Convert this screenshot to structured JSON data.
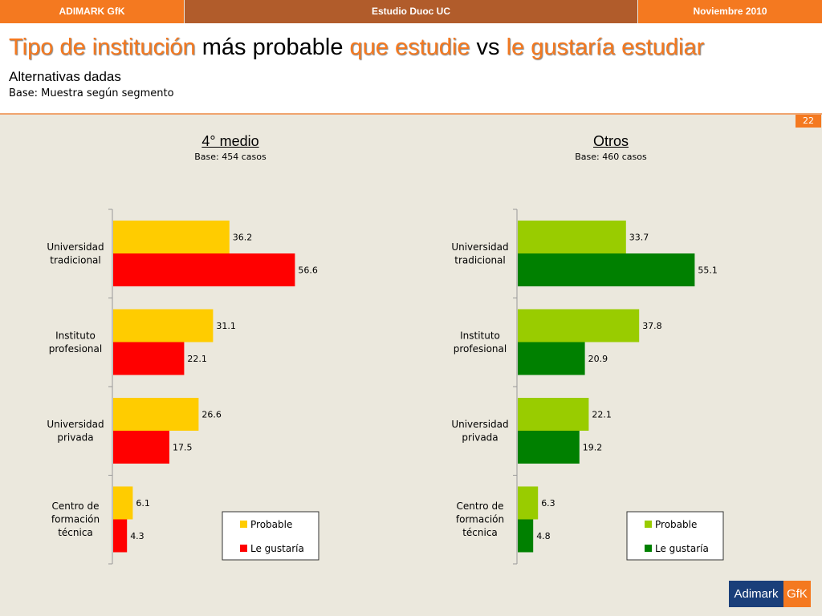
{
  "topbar": {
    "left": "ADIMARK GfK",
    "center": "Estudio Duoc UC",
    "right": "Noviembre 2010"
  },
  "header": {
    "title_parts": [
      "Tipo de institución",
      " más probable ",
      "que estudie",
      " vs ",
      "le gustaría estudiar"
    ],
    "subtitle": "Alternativas dadas",
    "base": "Base: Muestra según segmento"
  },
  "page_number": "22",
  "logo": {
    "left": "Adimark",
    "right": "GfK"
  },
  "colors": {
    "accent": "#f47920",
    "accent_dark": "#b15c2b",
    "probable_left": "#ffcc00",
    "gustaria_left": "#ff0000",
    "probable_right": "#99cc00",
    "gustaria_right": "#008000"
  },
  "chart_data": [
    {
      "type": "bar",
      "orientation": "horizontal",
      "title": "4° medio",
      "subtitle": "Base: 454 casos",
      "categories": [
        "Universidad tradicional",
        "Instituto profesional",
        "Universidad privada",
        "Centro de formación técnica"
      ],
      "category_lines": [
        [
          "Universidad",
          "tradicional"
        ],
        [
          "Instituto",
          "profesional"
        ],
        [
          "Universidad",
          "privada"
        ],
        [
          "Centro de",
          "formación",
          "técnica"
        ]
      ],
      "series": [
        {
          "name": "Probable",
          "values": [
            36.2,
            31.1,
            26.6,
            6.1
          ],
          "color": "#ffcc00"
        },
        {
          "name": "Le gustaría",
          "values": [
            56.6,
            22.1,
            17.5,
            4.3
          ],
          "color": "#ff0000"
        }
      ],
      "xlim": [
        0,
        100
      ],
      "legend": "bottom-right"
    },
    {
      "type": "bar",
      "orientation": "horizontal",
      "title": "Otros",
      "subtitle": "Base: 460 casos",
      "categories": [
        "Universidad tradicional",
        "Instituto profesional",
        "Universidad privada",
        "Centro de formación técnica"
      ],
      "category_lines": [
        [
          "Universidad",
          "tradicional"
        ],
        [
          "Instituto",
          "profesional"
        ],
        [
          "Universidad",
          "privada"
        ],
        [
          "Centro de",
          "formación",
          "técnica"
        ]
      ],
      "series": [
        {
          "name": "Probable",
          "values": [
            33.7,
            37.8,
            22.1,
            6.3
          ],
          "color": "#99cc00"
        },
        {
          "name": "Le gustaría",
          "values": [
            55.1,
            20.9,
            19.2,
            4.8
          ],
          "color": "#008000"
        }
      ],
      "xlim": [
        0,
        100
      ],
      "legend": "bottom-right"
    }
  ]
}
